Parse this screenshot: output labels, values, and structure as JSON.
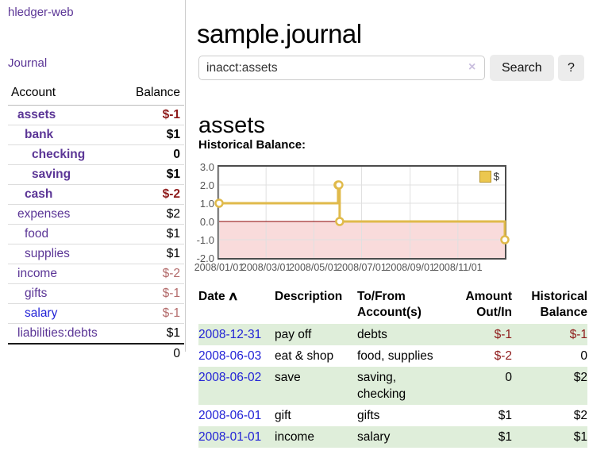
{
  "colors": {
    "purple": "#5b3596",
    "blue": "#2222d6",
    "negStrong": "#8e1a1a",
    "negMuted": "#b36b6b",
    "rowGreen": "#dfeeda",
    "btnBg": "#ececec",
    "axisText": "#555555",
    "chartBorder": "#4c4c4c",
    "gridLine": "#e0e0e0",
    "zeroLine": "#8b0000",
    "areaPink": "#f9dbdb",
    "lineGold": "#e0ba4b",
    "legendSwatch": "#ecc74f",
    "legendBorder": "#b8962e"
  },
  "sidebar": {
    "brand": "hledger-web",
    "journal_link": "Journal",
    "accounts": {
      "headers": {
        "account": "Account",
        "balance": "Balance"
      },
      "rows": [
        {
          "name": "assets",
          "balance": "$-1"
        },
        {
          "name": "bank",
          "balance": "$1"
        },
        {
          "name": "checking",
          "balance": "0"
        },
        {
          "name": "saving",
          "balance": "$1"
        },
        {
          "name": "cash",
          "balance": "$-2"
        },
        {
          "name": "expenses",
          "balance": "$2"
        },
        {
          "name": "food",
          "balance": "$1"
        },
        {
          "name": "supplies",
          "balance": "$1"
        },
        {
          "name": "income",
          "balance": "$-2"
        },
        {
          "name": "gifts",
          "balance": "$-1"
        },
        {
          "name": "salary",
          "balance": "$-1"
        },
        {
          "name": "liabilities:debts",
          "balance": "$1"
        }
      ],
      "total": "0"
    }
  },
  "main": {
    "title": "sample.journal",
    "search": {
      "value": "inacct:assets",
      "clear_icon": "×",
      "search_button": "Search",
      "help_button": "?"
    },
    "account_heading": "assets",
    "chart_label": "Historical Balance:"
  },
  "chart_data": {
    "type": "line",
    "style": "step-after",
    "title": "Historical Balance:",
    "series": [
      {
        "name": "$",
        "points": [
          [
            "2008-01-01",
            1
          ],
          [
            "2008-06-01",
            2
          ],
          [
            "2008-06-02",
            2
          ],
          [
            "2008-06-03",
            0
          ],
          [
            "2008-12-31",
            -1
          ]
        ]
      }
    ],
    "x_tick_labels": [
      "2008/01/01",
      "2008/03/01",
      "2008/05/01",
      "2008/07/01",
      "2008/09/01",
      "2008/11/01"
    ],
    "x_tick_dates": [
      "2008-01-01",
      "2008-03-01",
      "2008-05-01",
      "2008-07-01",
      "2008-09-01",
      "2008-11-01"
    ],
    "y_ticks": [
      3,
      2,
      1,
      0,
      -1,
      -2
    ],
    "ylim": [
      -2,
      3
    ],
    "xlim": [
      "2008-01-01",
      "2008-12-31"
    ],
    "grid": true,
    "legend_position": "top-right",
    "negative_region_shaded": true
  },
  "register": {
    "headers": {
      "date": "Date",
      "sort_icon": "∧",
      "description": "Description",
      "to_from": "To/From\nAccount(s)",
      "amount": "Amount\nOut/In",
      "balance": "Historical\nBalance"
    },
    "rows": [
      {
        "date": "2008-12-31",
        "description": "pay off",
        "to_from": "debts",
        "amount": "$-1",
        "balance": "$-1"
      },
      {
        "date": "2008-06-03",
        "description": "eat & shop",
        "to_from": "food, supplies",
        "amount": "$-2",
        "balance": "0"
      },
      {
        "date": "2008-06-02",
        "description": "save",
        "to_from": "saving,\nchecking",
        "amount": "0",
        "balance": "$2"
      },
      {
        "date": "2008-06-01",
        "description": "gift",
        "to_from": "gifts",
        "amount": "$1",
        "balance": "$2"
      },
      {
        "date": "2008-01-01",
        "description": "income",
        "to_from": "salary",
        "amount": "$1",
        "balance": "$1"
      }
    ]
  }
}
